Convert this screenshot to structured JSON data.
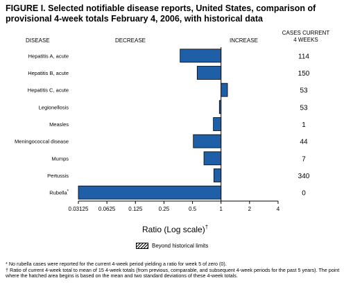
{
  "title": "FIGURE I. Selected notifiable disease reports, United States, comparison of provisional 4-week totals February 4, 2006, with historical data",
  "headers": {
    "disease": "DISEASE",
    "decrease": "DECREASE",
    "increase": "INCREASE",
    "cases_line1": "CASES CURRENT",
    "cases_line2": "4 WEEKS"
  },
  "legend_label": "Beyond historical limits",
  "xlabel_text": "Ratio (Log scale)",
  "xlabel_sup": "†",
  "footnotes": {
    "star_mark": "*",
    "star_text": "No rubella cases were reported for the current 4-week period yielding a ratio for week 5 of zero (0).",
    "dagger_mark": "†",
    "dagger_text": "Ratio of current 4-week total to mean of 15 4-week totals (from previous, comparable, and subsequent 4-week periods for the past 5 years). The point where the hatched area begins is based on the mean and two standard deviations of these 4-week totals."
  },
  "colors": {
    "bar": "#1f5fa8",
    "bar_edge": "#000000"
  },
  "chart_data": {
    "type": "bar",
    "orientation": "horizontal",
    "x_scale": "log2",
    "xlim": [
      0.03125,
      4
    ],
    "reference_line": 1,
    "tick_labels": [
      "0.03125",
      "0.0625",
      "0.125",
      "0.25",
      "0.5",
      "1",
      "2",
      "4"
    ],
    "tick_values": [
      0.03125,
      0.0625,
      0.125,
      0.25,
      0.5,
      1,
      2,
      4
    ],
    "categories": [
      "Hepatitis A, acute",
      "Hepatitis B, acute",
      "Hepatitis C, acute",
      "Legionellosis",
      "Measles",
      "Meningococcal disease",
      "Mumps",
      "Pertussis",
      "Rubella"
    ],
    "category_marks": [
      "",
      "",
      "",
      "",
      "",
      "",
      "",
      "",
      "*"
    ],
    "values": [
      0.37,
      0.56,
      1.17,
      0.96,
      0.83,
      0.51,
      0.66,
      0.84,
      0.03125
    ],
    "cases_current_4_weeks": [
      "114",
      "150",
      "53",
      "53",
      "1",
      "44",
      "7",
      "340",
      "0"
    ]
  }
}
